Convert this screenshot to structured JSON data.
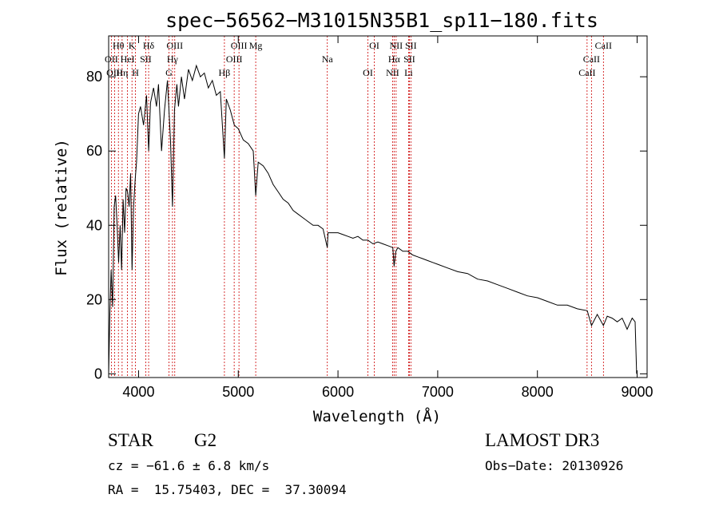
{
  "chart_data": {
    "type": "line",
    "title": "spec−56562−M31015N35B1_sp11−180.fits",
    "xlabel": "Wavelength (Å)",
    "ylabel": "Flux (relative)",
    "xlim": [
      3700,
      9100
    ],
    "ylim": [
      -1,
      91
    ],
    "xticks": [
      4000,
      5000,
      6000,
      7000,
      8000,
      9000
    ],
    "yticks": [
      0,
      20,
      40,
      60,
      80
    ],
    "line_color": "#000000",
    "marker_color": "#cc0000",
    "spectrum": {
      "x": [
        3700,
        3712,
        3725,
        3740,
        3755,
        3770,
        3785,
        3800,
        3815,
        3830,
        3845,
        3860,
        3875,
        3890,
        3905,
        3920,
        3935,
        3950,
        3965,
        3980,
        4000,
        4020,
        4050,
        4080,
        4101,
        4120,
        4150,
        4180,
        4200,
        4230,
        4260,
        4290,
        4320,
        4340,
        4360,
        4384,
        4400,
        4430,
        4460,
        4500,
        4540,
        4580,
        4620,
        4660,
        4700,
        4740,
        4780,
        4820,
        4861,
        4880,
        4920,
        4960,
        5000,
        5050,
        5100,
        5150,
        5175,
        5200,
        5250,
        5300,
        5350,
        5400,
        5450,
        5500,
        5550,
        5600,
        5650,
        5700,
        5750,
        5800,
        5850,
        5893,
        5900,
        5950,
        6000,
        6050,
        6100,
        6150,
        6200,
        6250,
        6300,
        6350,
        6400,
        6450,
        6500,
        6550,
        6563,
        6580,
        6600,
        6650,
        6700,
        6750,
        6800,
        6850,
        6900,
        6950,
        7000,
        7100,
        7200,
        7300,
        7400,
        7500,
        7600,
        7700,
        7800,
        7900,
        8000,
        8100,
        8200,
        8300,
        8400,
        8500,
        8542,
        8600,
        8662,
        8700,
        8750,
        8800,
        8850,
        8900,
        8950,
        8980,
        8995
      ],
      "y": [
        0,
        16,
        28,
        18,
        45,
        48,
        40,
        30,
        40,
        28,
        47,
        38,
        50,
        49,
        45,
        54,
        28,
        45,
        52,
        57,
        70,
        72,
        67,
        75,
        60,
        73,
        77,
        72,
        78,
        60,
        71,
        79,
        63,
        45,
        71,
        78,
        72,
        80,
        74,
        82,
        79,
        83,
        80,
        81,
        77,
        79,
        75,
        76,
        58,
        74,
        71,
        67,
        66,
        63,
        62,
        60,
        48,
        57,
        56,
        54,
        51,
        49,
        47,
        46,
        44,
        43,
        42,
        41,
        40,
        40,
        39,
        34,
        38,
        38,
        38,
        37.5,
        37,
        36.5,
        37,
        36,
        36,
        35,
        35.5,
        35,
        34.5,
        34,
        29,
        33,
        34,
        33,
        33,
        32,
        31.5,
        31,
        30.5,
        30,
        29.5,
        28.5,
        27.5,
        27,
        25.5,
        25,
        24,
        23,
        22,
        21,
        20.5,
        19.5,
        18.5,
        18.5,
        17.5,
        17,
        13,
        16,
        13,
        15.5,
        15,
        14,
        15,
        12,
        15,
        14,
        0
      ]
    },
    "lines": [
      {
        "label": "Hθ",
        "wave": 3798
      },
      {
        "label": "OII",
        "wave": 3727
      },
      {
        "label": "OIII",
        "wave": 3760
      },
      {
        "label": "K",
        "wave": 3934
      },
      {
        "label": "HeI",
        "wave": 3889
      },
      {
        "label": "Hη",
        "wave": 3835
      },
      {
        "label": "Hδ",
        "wave": 4101
      },
      {
        "label": "SII",
        "wave": 4072
      },
      {
        "label": "H",
        "wave": 3969
      },
      {
        "label": "OIII",
        "wave": 4363
      },
      {
        "label": "Hγ",
        "wave": 4340
      },
      {
        "label": "G",
        "wave": 4305
      },
      {
        "label": "OIII",
        "wave": 5007
      },
      {
        "label": "OIII",
        "wave": 4959
      },
      {
        "label": "Hβ",
        "wave": 4861
      },
      {
        "label": "Mg",
        "wave": 5175
      },
      {
        "label": "Na",
        "wave": 5893
      },
      {
        "label": "OI",
        "wave": 6300
      },
      {
        "label": "OI",
        "wave": 6364
      },
      {
        "label": "Hα",
        "wave": 6563
      },
      {
        "label": "NII",
        "wave": 6548
      },
      {
        "label": "NII",
        "wave": 6583
      },
      {
        "label": "SII",
        "wave": 6716
      },
      {
        "label": "Li",
        "wave": 6708
      },
      {
        "label": "SII",
        "wave": 6731
      },
      {
        "label": "CaII",
        "wave": 8542
      },
      {
        "label": "CaII",
        "wave": 8498
      },
      {
        "label": "CaII",
        "wave": 8662
      }
    ]
  },
  "info": {
    "class_label": "STAR",
    "subclass": "G2",
    "survey": "LAMOST DR3",
    "cz": "cz = −61.6 ± 6.8 km/s",
    "obs_date": "Obs−Date: 20130926",
    "coords": "RA =  15.75403, DEC =  37.30094"
  }
}
